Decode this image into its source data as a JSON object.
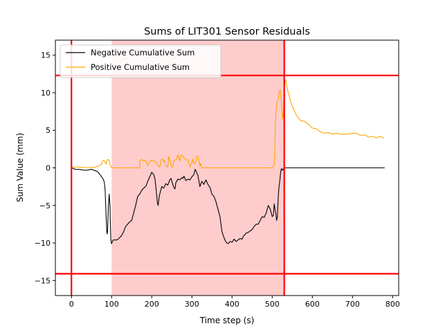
{
  "chart_data": {
    "type": "line",
    "title": "Sums of LIT301 Sensor Residuals",
    "xlabel": "Time step (s)",
    "ylabel": "Sum Value (mm)",
    "xlim": [
      -40,
      815
    ],
    "ylim": [
      -17,
      17
    ],
    "x_ticks": [
      0,
      100,
      200,
      300,
      400,
      500,
      600,
      700,
      800
    ],
    "y_ticks": [
      -15,
      -10,
      -5,
      0,
      5,
      10,
      15
    ],
    "x_tick_labels": [
      "0",
      "100",
      "200",
      "300",
      "400",
      "500",
      "600",
      "700",
      "800"
    ],
    "y_tick_labels": [
      "−15",
      "−10",
      "−5",
      "0",
      "5",
      "10",
      "15"
    ],
    "grid": false,
    "legend_position": "upper-left",
    "shaded_region": {
      "x_start": 100,
      "x_end": 530,
      "color": "#ffcccc"
    },
    "threshold_lines": {
      "vertical": [
        0,
        530
      ],
      "horizontal": [
        12.3,
        -14.1
      ],
      "color": "#ff0000"
    },
    "series": [
      {
        "name": "Negative Cumulative Sum",
        "color": "#000000",
        "x": [
          0,
          10,
          20,
          30,
          40,
          50,
          60,
          65,
          70,
          75,
          78,
          80,
          82,
          84,
          86,
          88,
          89,
          90,
          92,
          94,
          96,
          97,
          98,
          100,
          102,
          104,
          108,
          112,
          116,
          120,
          125,
          130,
          135,
          140,
          145,
          150,
          155,
          160,
          165,
          170,
          173,
          175,
          178,
          182,
          186,
          190,
          195,
          200,
          205,
          208,
          210,
          212,
          214,
          216,
          218,
          220,
          225,
          230,
          235,
          240,
          245,
          248,
          250,
          255,
          258,
          260,
          265,
          270,
          275,
          278,
          280,
          285,
          290,
          295,
          300,
          305,
          308,
          310,
          315,
          320,
          325,
          330,
          335,
          340,
          345,
          350,
          355,
          360,
          365,
          370,
          375,
          378,
          380,
          385,
          390,
          395,
          400,
          405,
          410,
          415,
          420,
          425,
          428,
          430,
          435,
          440,
          445,
          450,
          455,
          460,
          465,
          470,
          475,
          480,
          485,
          490,
          495,
          500,
          503,
          505,
          507,
          509,
          511,
          513,
          515,
          517,
          519,
          521,
          523,
          525,
          527,
          530,
          540,
          560,
          600,
          650,
          700,
          750,
          780
        ],
        "values": [
          0,
          -0.2,
          -0.2,
          -0.3,
          -0.3,
          -0.2,
          -0.4,
          -0.5,
          -0.8,
          -1.2,
          -1.4,
          -1.6,
          -2.0,
          -3.0,
          -6.0,
          -8.5,
          -8.8,
          -8.4,
          -5.0,
          -3.5,
          -5.0,
          -7.5,
          -9.5,
          -10.1,
          -9.8,
          -9.6,
          -9.6,
          -9.6,
          -9.5,
          -9.3,
          -9.0,
          -8.5,
          -7.8,
          -7.5,
          -7.2,
          -7.0,
          -6.0,
          -5.0,
          -3.8,
          -3.5,
          -3.2,
          -3.0,
          -2.8,
          -2.6,
          -2.4,
          -1.8,
          -1.2,
          -0.6,
          -0.9,
          -1.5,
          -2.4,
          -3.5,
          -4.6,
          -5.0,
          -4.0,
          -3.5,
          -2.5,
          -2.7,
          -2.1,
          -2.3,
          -1.6,
          -1.4,
          -1.8,
          -2.6,
          -2.8,
          -2.0,
          -1.5,
          -1.6,
          -1.3,
          -1.4,
          -1.1,
          -1.7,
          -1.5,
          -1.6,
          -1.2,
          -0.9,
          -0.2,
          -0.4,
          -1.0,
          -2.5,
          -1.8,
          -2.2,
          -1.6,
          -2.2,
          -2.6,
          -3.5,
          -3.8,
          -4.5,
          -5.5,
          -6.5,
          -8.5,
          -9.0,
          -9.3,
          -9.9,
          -10.1,
          -9.8,
          -9.9,
          -9.5,
          -9.8,
          -9.6,
          -9.4,
          -9.5,
          -9.1,
          -9.0,
          -8.7,
          -8.6,
          -8.4,
          -8.2,
          -7.8,
          -7.5,
          -7.5,
          -7.0,
          -6.5,
          -6.6,
          -6.0,
          -5.0,
          -5.5,
          -6.5,
          -6.3,
          -4.8,
          -5.5,
          -6.0,
          -7.0,
          -6.5,
          -3.8,
          -2.5,
          -1.7,
          -0.6,
          -0.1,
          -0.3,
          -0.2,
          0,
          0,
          0,
          0,
          0,
          0,
          0,
          0
        ]
      },
      {
        "name": "Positive Cumulative Sum",
        "color": "#ffa500",
        "x": [
          0,
          20,
          40,
          60,
          65,
          70,
          75,
          78,
          80,
          82,
          84,
          86,
          88,
          90,
          92,
          94,
          96,
          98,
          100,
          120,
          150,
          170,
          171,
          175,
          180,
          183,
          185,
          190,
          195,
          200,
          205,
          210,
          215,
          220,
          222,
          224,
          226,
          228,
          230,
          232,
          235,
          240,
          242,
          245,
          250,
          252,
          254,
          256,
          258,
          260,
          262,
          264,
          266,
          268,
          270,
          272,
          275,
          280,
          285,
          290,
          295,
          298,
          300,
          302,
          305,
          310,
          312,
          315,
          318,
          320,
          322,
          325,
          330,
          335,
          340,
          360,
          400,
          450,
          500,
          505,
          507,
          508,
          510,
          512,
          514,
          516,
          518,
          520,
          522,
          524,
          526,
          528,
          530,
          532,
          534,
          536,
          540,
          545,
          550,
          555,
          560,
          570,
          580,
          590,
          600,
          610,
          620,
          630,
          640,
          650,
          660,
          670,
          680,
          690,
          700,
          710,
          720,
          730,
          740,
          750,
          760,
          770,
          778
        ],
        "values": [
          0.1,
          0.1,
          0,
          0.1,
          0.2,
          0.3,
          0.5,
          0.9,
          1.0,
          0.9,
          0.7,
          0.5,
          0.9,
          1.1,
          1.1,
          1.0,
          0.5,
          0.2,
          0,
          0,
          0,
          0,
          1.0,
          1.1,
          0.9,
          1.0,
          1.0,
          0.3,
          0.8,
          1.0,
          0.9,
          0.8,
          0.3,
          0.1,
          0.6,
          1.1,
          1.2,
          1.1,
          0.8,
          1.0,
          0.3,
          0.1,
          1.5,
          1.0,
          0.1,
          0.1,
          0.6,
          1.0,
          1.0,
          1.1,
          1.2,
          1.6,
          1.7,
          1.2,
          0.9,
          1.6,
          1.7,
          1.4,
          1.0,
          1.1,
          0.1,
          0.5,
          0.7,
          1.2,
          0.5,
          0.8,
          1.6,
          1.5,
          0.8,
          0.2,
          0.6,
          0,
          0,
          0,
          0,
          0,
          0,
          0,
          0,
          0.4,
          3.0,
          6.2,
          8.0,
          8.7,
          9.0,
          9.5,
          10.2,
          10.4,
          9.5,
          8.0,
          6.5,
          7.5,
          10.5,
          11.7,
          11.6,
          11.0,
          10.0,
          9.0,
          8.2,
          7.6,
          7.0,
          6.3,
          6.2,
          5.8,
          5.3,
          5.2,
          4.8,
          4.6,
          4.7,
          4.5,
          4.6,
          4.5,
          4.5,
          4.5,
          4.6,
          4.6,
          4.3,
          4.4,
          4.1,
          4.2,
          4.0,
          4.2,
          3.9
        ]
      }
    ]
  }
}
